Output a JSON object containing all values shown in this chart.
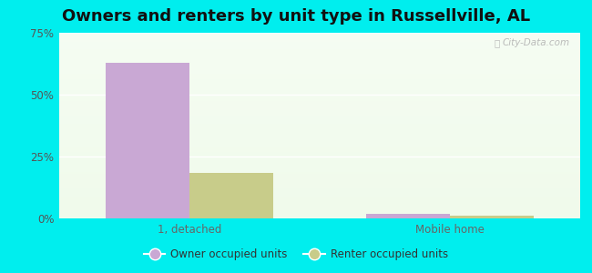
{
  "title": "Owners and renters by unit type in Russellville, AL",
  "categories": [
    "1, detached",
    "Mobile home"
  ],
  "owner_values": [
    63.0,
    2.0
  ],
  "renter_values": [
    18.5,
    1.0
  ],
  "owner_color": "#c9a8d4",
  "renter_color": "#c8cc8a",
  "bg_outer": "#00eeee",
  "ylim": [
    0,
    75
  ],
  "yticks": [
    0,
    25,
    50,
    75
  ],
  "yticklabels": [
    "0%",
    "25%",
    "50%",
    "75%"
  ],
  "bar_width": 0.32,
  "legend_labels": [
    "Owner occupied units",
    "Renter occupied units"
  ],
  "watermark": "City-Data.com",
  "title_fontsize": 13,
  "axis_fontsize": 8.5,
  "legend_fontsize": 8.5
}
